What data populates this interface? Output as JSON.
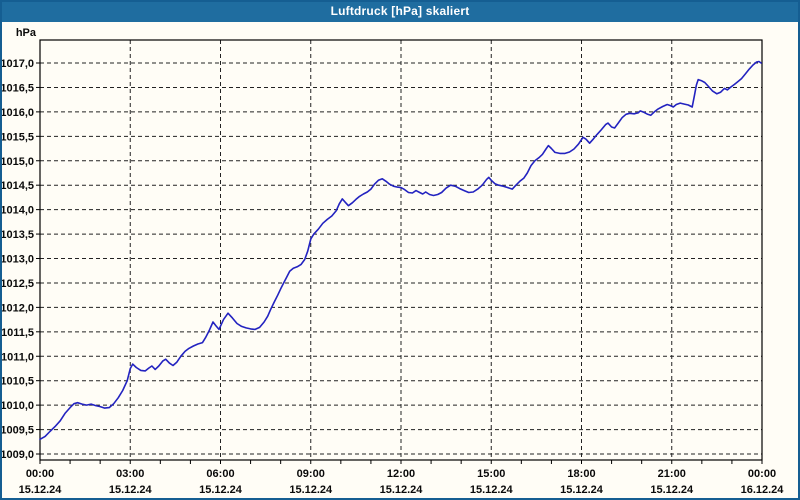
{
  "window": {
    "title": "Luftdruck [hPa] skaliert"
  },
  "colors": {
    "titlebar_bg": "#1f6da0",
    "window_border": "#155e92",
    "background": "#fffdf6",
    "line": "#2323c0",
    "grid": "#222222",
    "axis": "#000000",
    "text": "#0a0a0a",
    "title_text": "#ffffff"
  },
  "chart_data": {
    "type": "line",
    "title": "Luftdruck [hPa] skaliert",
    "unit_label": "hPa",
    "grid": "dashed",
    "legend_position": "none",
    "y_axis": {
      "min": 1009.0,
      "max": 1017.0,
      "step": 0.5,
      "tick_labels": [
        "1017,0",
        "1016,5",
        "1016,0",
        "1015,5",
        "1015,0",
        "1014,5",
        "1014,0",
        "1013,5",
        "1013,0",
        "1012,5",
        "1012,0",
        "1011,5",
        "1011,0",
        "1010,5",
        "1010,0",
        "1009,5",
        "1009,0"
      ]
    },
    "x_axis": {
      "range_hours": [
        0,
        24
      ],
      "major_tick_every_hours": 3,
      "minor_tick_every_hours": 1,
      "ticks": [
        {
          "time": "00:00",
          "date": "15.12.24"
        },
        {
          "time": "03:00",
          "date": "15.12.24"
        },
        {
          "time": "06:00",
          "date": "15.12.24"
        },
        {
          "time": "09:00",
          "date": "15.12.24"
        },
        {
          "time": "12:00",
          "date": "15.12.24"
        },
        {
          "time": "15:00",
          "date": "15.12.24"
        },
        {
          "time": "18:00",
          "date": "15.12.24"
        },
        {
          "time": "21:00",
          "date": "15.12.24"
        },
        {
          "time": "00:00",
          "date": "16.12.24"
        }
      ]
    },
    "series": [
      {
        "name": "Luftdruck",
        "color": "#2323c0",
        "points": [
          [
            0.0,
            1009.3
          ],
          [
            0.17,
            1009.36
          ],
          [
            0.33,
            1009.46
          ],
          [
            0.5,
            1009.56
          ],
          [
            0.67,
            1009.68
          ],
          [
            0.83,
            1009.83
          ],
          [
            1.0,
            1009.95
          ],
          [
            1.13,
            1010.03
          ],
          [
            1.25,
            1010.05
          ],
          [
            1.4,
            1010.02
          ],
          [
            1.55,
            1010.0
          ],
          [
            1.7,
            1010.02
          ],
          [
            1.85,
            1009.99
          ],
          [
            2.0,
            1009.97
          ],
          [
            2.15,
            1009.94
          ],
          [
            2.3,
            1009.95
          ],
          [
            2.45,
            1010.03
          ],
          [
            2.6,
            1010.15
          ],
          [
            2.75,
            1010.3
          ],
          [
            2.9,
            1010.5
          ],
          [
            3.0,
            1010.75
          ],
          [
            3.08,
            1010.84
          ],
          [
            3.2,
            1010.77
          ],
          [
            3.35,
            1010.71
          ],
          [
            3.5,
            1010.7
          ],
          [
            3.62,
            1010.76
          ],
          [
            3.72,
            1010.8
          ],
          [
            3.83,
            1010.73
          ],
          [
            3.95,
            1010.8
          ],
          [
            4.08,
            1010.9
          ],
          [
            4.18,
            1010.94
          ],
          [
            4.3,
            1010.86
          ],
          [
            4.42,
            1010.81
          ],
          [
            4.55,
            1010.88
          ],
          [
            4.68,
            1011.0
          ],
          [
            4.82,
            1011.1
          ],
          [
            4.95,
            1011.16
          ],
          [
            5.1,
            1011.21
          ],
          [
            5.25,
            1011.25
          ],
          [
            5.4,
            1011.28
          ],
          [
            5.5,
            1011.38
          ],
          [
            5.62,
            1011.52
          ],
          [
            5.75,
            1011.7
          ],
          [
            5.85,
            1011.62
          ],
          [
            5.95,
            1011.55
          ],
          [
            6.1,
            1011.75
          ],
          [
            6.25,
            1011.88
          ],
          [
            6.4,
            1011.78
          ],
          [
            6.55,
            1011.67
          ],
          [
            6.7,
            1011.61
          ],
          [
            6.85,
            1011.58
          ],
          [
            7.0,
            1011.56
          ],
          [
            7.15,
            1011.55
          ],
          [
            7.3,
            1011.59
          ],
          [
            7.45,
            1011.7
          ],
          [
            7.57,
            1011.82
          ],
          [
            7.67,
            1011.96
          ],
          [
            7.78,
            1012.1
          ],
          [
            7.9,
            1012.25
          ],
          [
            8.0,
            1012.38
          ],
          [
            8.1,
            1012.5
          ],
          [
            8.2,
            1012.62
          ],
          [
            8.3,
            1012.74
          ],
          [
            8.42,
            1012.8
          ],
          [
            8.55,
            1012.83
          ],
          [
            8.68,
            1012.88
          ],
          [
            8.8,
            1012.98
          ],
          [
            8.9,
            1013.15
          ],
          [
            9.0,
            1013.4
          ],
          [
            9.1,
            1013.5
          ],
          [
            9.25,
            1013.6
          ],
          [
            9.4,
            1013.72
          ],
          [
            9.55,
            1013.8
          ],
          [
            9.7,
            1013.87
          ],
          [
            9.85,
            1013.98
          ],
          [
            9.95,
            1014.12
          ],
          [
            10.05,
            1014.22
          ],
          [
            10.15,
            1014.15
          ],
          [
            10.25,
            1014.08
          ],
          [
            10.38,
            1014.14
          ],
          [
            10.5,
            1014.21
          ],
          [
            10.62,
            1014.27
          ],
          [
            10.75,
            1014.32
          ],
          [
            10.88,
            1014.36
          ],
          [
            11.0,
            1014.42
          ],
          [
            11.12,
            1014.52
          ],
          [
            11.25,
            1014.6
          ],
          [
            11.38,
            1014.63
          ],
          [
            11.5,
            1014.58
          ],
          [
            11.62,
            1014.52
          ],
          [
            11.75,
            1014.48
          ],
          [
            11.88,
            1014.46
          ],
          [
            12.0,
            1014.45
          ],
          [
            12.12,
            1014.41
          ],
          [
            12.25,
            1014.35
          ],
          [
            12.38,
            1014.34
          ],
          [
            12.5,
            1014.39
          ],
          [
            12.62,
            1014.35
          ],
          [
            12.72,
            1014.32
          ],
          [
            12.82,
            1014.36
          ],
          [
            12.95,
            1014.31
          ],
          [
            13.08,
            1014.29
          ],
          [
            13.22,
            1014.31
          ],
          [
            13.35,
            1014.35
          ],
          [
            13.5,
            1014.44
          ],
          [
            13.65,
            1014.5
          ],
          [
            13.8,
            1014.48
          ],
          [
            13.95,
            1014.43
          ],
          [
            14.1,
            1014.39
          ],
          [
            14.25,
            1014.35
          ],
          [
            14.4,
            1014.36
          ],
          [
            14.55,
            1014.42
          ],
          [
            14.7,
            1014.5
          ],
          [
            14.85,
            1014.62
          ],
          [
            14.92,
            1014.66
          ],
          [
            15.0,
            1014.6
          ],
          [
            15.12,
            1014.53
          ],
          [
            15.25,
            1014.5
          ],
          [
            15.4,
            1014.48
          ],
          [
            15.55,
            1014.45
          ],
          [
            15.7,
            1014.42
          ],
          [
            15.82,
            1014.5
          ],
          [
            15.95,
            1014.58
          ],
          [
            16.08,
            1014.64
          ],
          [
            16.2,
            1014.75
          ],
          [
            16.32,
            1014.9
          ],
          [
            16.45,
            1015.0
          ],
          [
            16.58,
            1015.06
          ],
          [
            16.7,
            1015.13
          ],
          [
            16.82,
            1015.24
          ],
          [
            16.9,
            1015.31
          ],
          [
            17.0,
            1015.25
          ],
          [
            17.12,
            1015.17
          ],
          [
            17.28,
            1015.15
          ],
          [
            17.45,
            1015.15
          ],
          [
            17.6,
            1015.18
          ],
          [
            17.75,
            1015.24
          ],
          [
            17.9,
            1015.34
          ],
          [
            18.05,
            1015.48
          ],
          [
            18.15,
            1015.44
          ],
          [
            18.27,
            1015.36
          ],
          [
            18.4,
            1015.45
          ],
          [
            18.52,
            1015.54
          ],
          [
            18.65,
            1015.63
          ],
          [
            18.8,
            1015.74
          ],
          [
            18.88,
            1015.77
          ],
          [
            19.0,
            1015.69
          ],
          [
            19.1,
            1015.67
          ],
          [
            19.22,
            1015.77
          ],
          [
            19.35,
            1015.88
          ],
          [
            19.48,
            1015.95
          ],
          [
            19.6,
            1015.97
          ],
          [
            19.75,
            1015.96
          ],
          [
            19.88,
            1015.98
          ],
          [
            19.95,
            1016.02
          ],
          [
            20.08,
            1015.99
          ],
          [
            20.2,
            1015.95
          ],
          [
            20.3,
            1015.93
          ],
          [
            20.42,
            1016.0
          ],
          [
            20.55,
            1016.06
          ],
          [
            20.7,
            1016.11
          ],
          [
            20.85,
            1016.15
          ],
          [
            20.95,
            1016.13
          ],
          [
            21.05,
            1016.1
          ],
          [
            21.15,
            1016.15
          ],
          [
            21.28,
            1016.18
          ],
          [
            21.42,
            1016.16
          ],
          [
            21.55,
            1016.14
          ],
          [
            21.68,
            1016.1
          ],
          [
            21.75,
            1016.32
          ],
          [
            21.82,
            1016.55
          ],
          [
            21.88,
            1016.66
          ],
          [
            21.98,
            1016.64
          ],
          [
            22.1,
            1016.6
          ],
          [
            22.22,
            1016.52
          ],
          [
            22.35,
            1016.43
          ],
          [
            22.5,
            1016.37
          ],
          [
            22.62,
            1016.4
          ],
          [
            22.75,
            1016.48
          ],
          [
            22.85,
            1016.45
          ],
          [
            22.95,
            1016.5
          ],
          [
            23.08,
            1016.56
          ],
          [
            23.2,
            1016.62
          ],
          [
            23.32,
            1016.68
          ],
          [
            23.45,
            1016.78
          ],
          [
            23.58,
            1016.88
          ],
          [
            23.7,
            1016.96
          ],
          [
            23.82,
            1017.02
          ],
          [
            23.9,
            1017.03
          ],
          [
            23.97,
            1017.0
          ]
        ]
      }
    ]
  }
}
